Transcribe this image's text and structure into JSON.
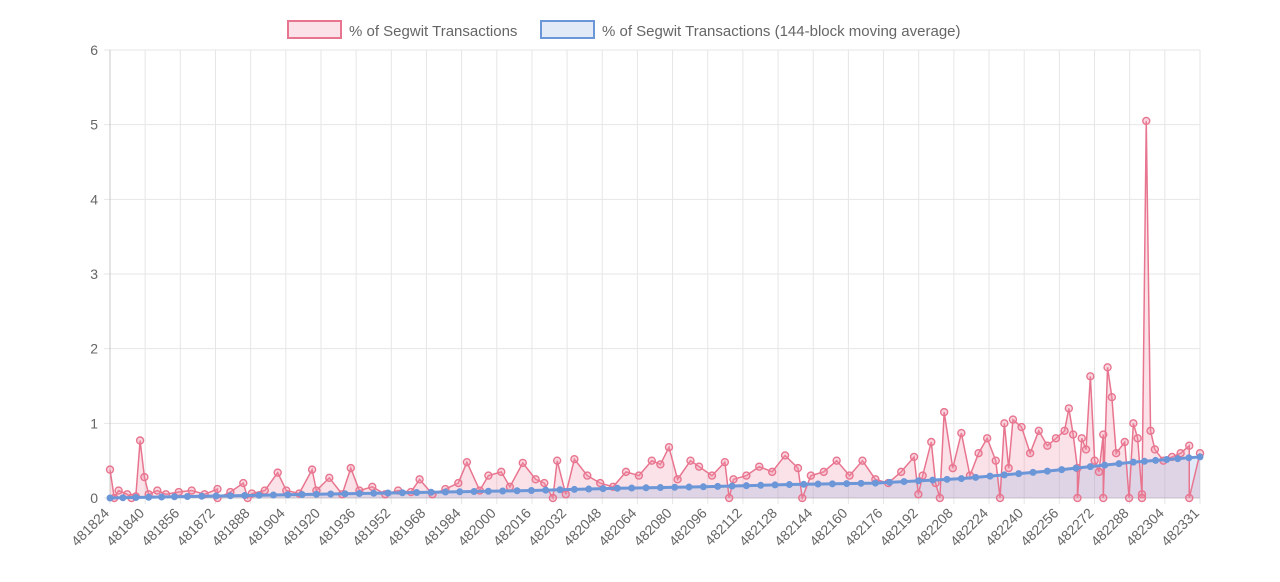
{
  "colors": {
    "series_raw_line": "#e8758f",
    "series_raw_fill": "rgba(240,140,165,0.25)",
    "series_avg_line": "#6b96d8",
    "series_avg_fill": "rgba(140,170,225,0.25)",
    "grid": "#e6e6e6",
    "axis": "#c8c8c8",
    "text": "#666666"
  },
  "legend": {
    "items": [
      {
        "label": "% of Segwit Transactions"
      },
      {
        "label": "% of Segwit Transactions (144-block moving average)"
      }
    ]
  },
  "chart_data": {
    "type": "line",
    "xlabel": "",
    "ylabel": "",
    "ylim": [
      0,
      6
    ],
    "ytick_values": [
      0,
      1,
      2,
      3,
      4,
      5,
      6
    ],
    "xrange": [
      481824,
      482331
    ],
    "xtick_labels": [
      "481824",
      "481840",
      "481856",
      "481872",
      "481888",
      "481904",
      "481920",
      "481936",
      "481952",
      "481968",
      "481984",
      "482000",
      "482016",
      "482032",
      "482048",
      "482064",
      "482080",
      "482096",
      "482112",
      "482128",
      "482144",
      "482160",
      "482176",
      "482192",
      "482208",
      "482224",
      "482240",
      "482256",
      "482272",
      "482288",
      "482304",
      "482331"
    ],
    "grid": true,
    "legend_position": "top",
    "series": [
      {
        "name": "% of Segwit Transactions",
        "x": [
          481824,
          481828,
          481832,
          481836,
          481838,
          481840,
          481842,
          481846,
          481850,
          481856,
          481862,
          481868,
          481874,
          481880,
          481886,
          481890,
          481896,
          481902,
          481906,
          481912,
          481918,
          481920,
          481926,
          481932,
          481936,
          481940,
          481946,
          481952,
          481958,
          481964,
          481968,
          481974,
          481980,
          481986,
          481990,
          481996,
          482000,
          482006,
          482010,
          482016,
          482022,
          482026,
          482032,
          482036,
          482040,
          482046,
          482052,
          482058,
          482064,
          482070,
          482076,
          482080,
          482084,
          482088,
          482094,
          482098,
          482104,
          482110,
          482114,
          482120,
          482126,
          482132,
          482138,
          482144,
          482150,
          482156,
          482162,
          482168,
          482174,
          482180,
          482186,
          482192,
          482198,
          482202,
          482206,
          482208,
          482212,
          482216,
          482220,
          482224,
          482228,
          482232,
          482236,
          482240,
          482242,
          482244,
          482248,
          482252,
          482256,
          482260,
          482264,
          482268,
          482270,
          482272,
          482274,
          482276,
          482278,
          482280,
          482282,
          482284,
          482286,
          482288,
          482290,
          482292,
          482296,
          482300,
          482302,
          482304,
          482306,
          482308,
          482310,
          482314,
          482318,
          482322,
          482326,
          482331
        ],
        "values": [
          0.38,
          0.1,
          0.05,
          0.02,
          0.77,
          0.28,
          0.05,
          0.1,
          0.05,
          0.08,
          0.1,
          0.05,
          0.12,
          0.08,
          0.2,
          0.06,
          0.1,
          0.34,
          0.1,
          0.06,
          0.38,
          0.1,
          0.27,
          0.05,
          0.4,
          0.1,
          0.15,
          0.05,
          0.1,
          0.08,
          0.25,
          0.05,
          0.12,
          0.2,
          0.48,
          0.1,
          0.3,
          0.35,
          0.15,
          0.47,
          0.25,
          0.2,
          0.5,
          0.05,
          0.52,
          0.3,
          0.2,
          0.15,
          0.35,
          0.3,
          0.5,
          0.45,
          0.68,
          0.25,
          0.5,
          0.42,
          0.3,
          0.48,
          0.25,
          0.3,
          0.42,
          0.35,
          0.57,
          0.4,
          0.3,
          0.35,
          0.5,
          0.3,
          0.5,
          0.25,
          0.2,
          0.35,
          0.55,
          0.3,
          0.75,
          0.2,
          1.15,
          0.4,
          0.87,
          0.3,
          0.6,
          0.8,
          0.5,
          1.0,
          0.4,
          1.05,
          0.95,
          0.6,
          0.9,
          0.7,
          0.8,
          0.9,
          1.2,
          0.85,
          0.4,
          0.8,
          0.65,
          1.63,
          0.5,
          0.35,
          0.85,
          1.75,
          1.35,
          0.6,
          0.75,
          1.0,
          0.8,
          0.05,
          5.05,
          0.9,
          0.65,
          0.5,
          0.55,
          0.6,
          0.7,
          0.6
        ],
        "y_low_dips": [
          [
            481826,
            0.0
          ],
          [
            481834,
            0.0
          ],
          [
            481874,
            0.0
          ],
          [
            481888,
            0.0
          ],
          [
            482030,
            0.0
          ],
          [
            482112,
            0.0
          ],
          [
            482146,
            0.0
          ],
          [
            482200,
            0.05
          ],
          [
            482210,
            0.0
          ],
          [
            482238,
            0.0
          ],
          [
            482274,
            0.0
          ],
          [
            482286,
            0.0
          ],
          [
            482298,
            0.0
          ],
          [
            482304,
            0.0
          ],
          [
            482326,
            0.0
          ]
        ]
      },
      {
        "name": "% of Segwit Transactions (144-block moving average)",
        "x": [
          481824,
          481860,
          481900,
          481940,
          481980,
          482020,
          482060,
          482100,
          482140,
          482180,
          482220,
          482260,
          482300,
          482331
        ],
        "values": [
          0.0,
          0.02,
          0.04,
          0.06,
          0.08,
          0.1,
          0.13,
          0.15,
          0.18,
          0.2,
          0.26,
          0.36,
          0.48,
          0.55
        ]
      }
    ]
  }
}
